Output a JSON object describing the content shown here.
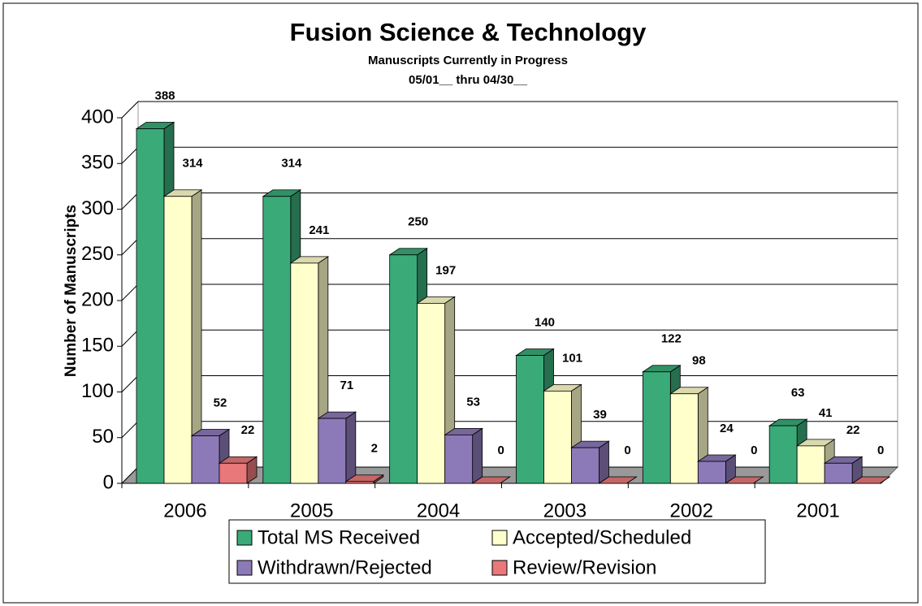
{
  "chart_data": {
    "type": "bar3d",
    "title": "Fusion Science & Technology",
    "subtitle": [
      "Manuscripts Currently in Progress",
      "05/01__ thru 04/30__"
    ],
    "y_label": "Number of Manuscripts",
    "categories": [
      "2006",
      "2005",
      "2004",
      "2003",
      "2002",
      "2001"
    ],
    "series": [
      {
        "name": "Total MS Received",
        "color": "#3aaa78",
        "values": [
          388,
          314,
          250,
          140,
          122,
          63
        ]
      },
      {
        "name": "Accepted/Scheduled",
        "color": "#ffffcc",
        "values": [
          314,
          241,
          197,
          101,
          98,
          41
        ]
      },
      {
        "name": "Withdrawn/Rejected",
        "color": "#8c7ab8",
        "values": [
          52,
          71,
          53,
          39,
          24,
          22
        ]
      },
      {
        "name": "Review/Revision",
        "color": "#e8787a",
        "values": [
          22,
          2,
          0,
          0,
          0,
          0
        ]
      }
    ],
    "ylim": [
      0,
      400
    ],
    "yticks": [
      0,
      50,
      100,
      150,
      200,
      250,
      300,
      350,
      400
    ],
    "grid": true
  }
}
